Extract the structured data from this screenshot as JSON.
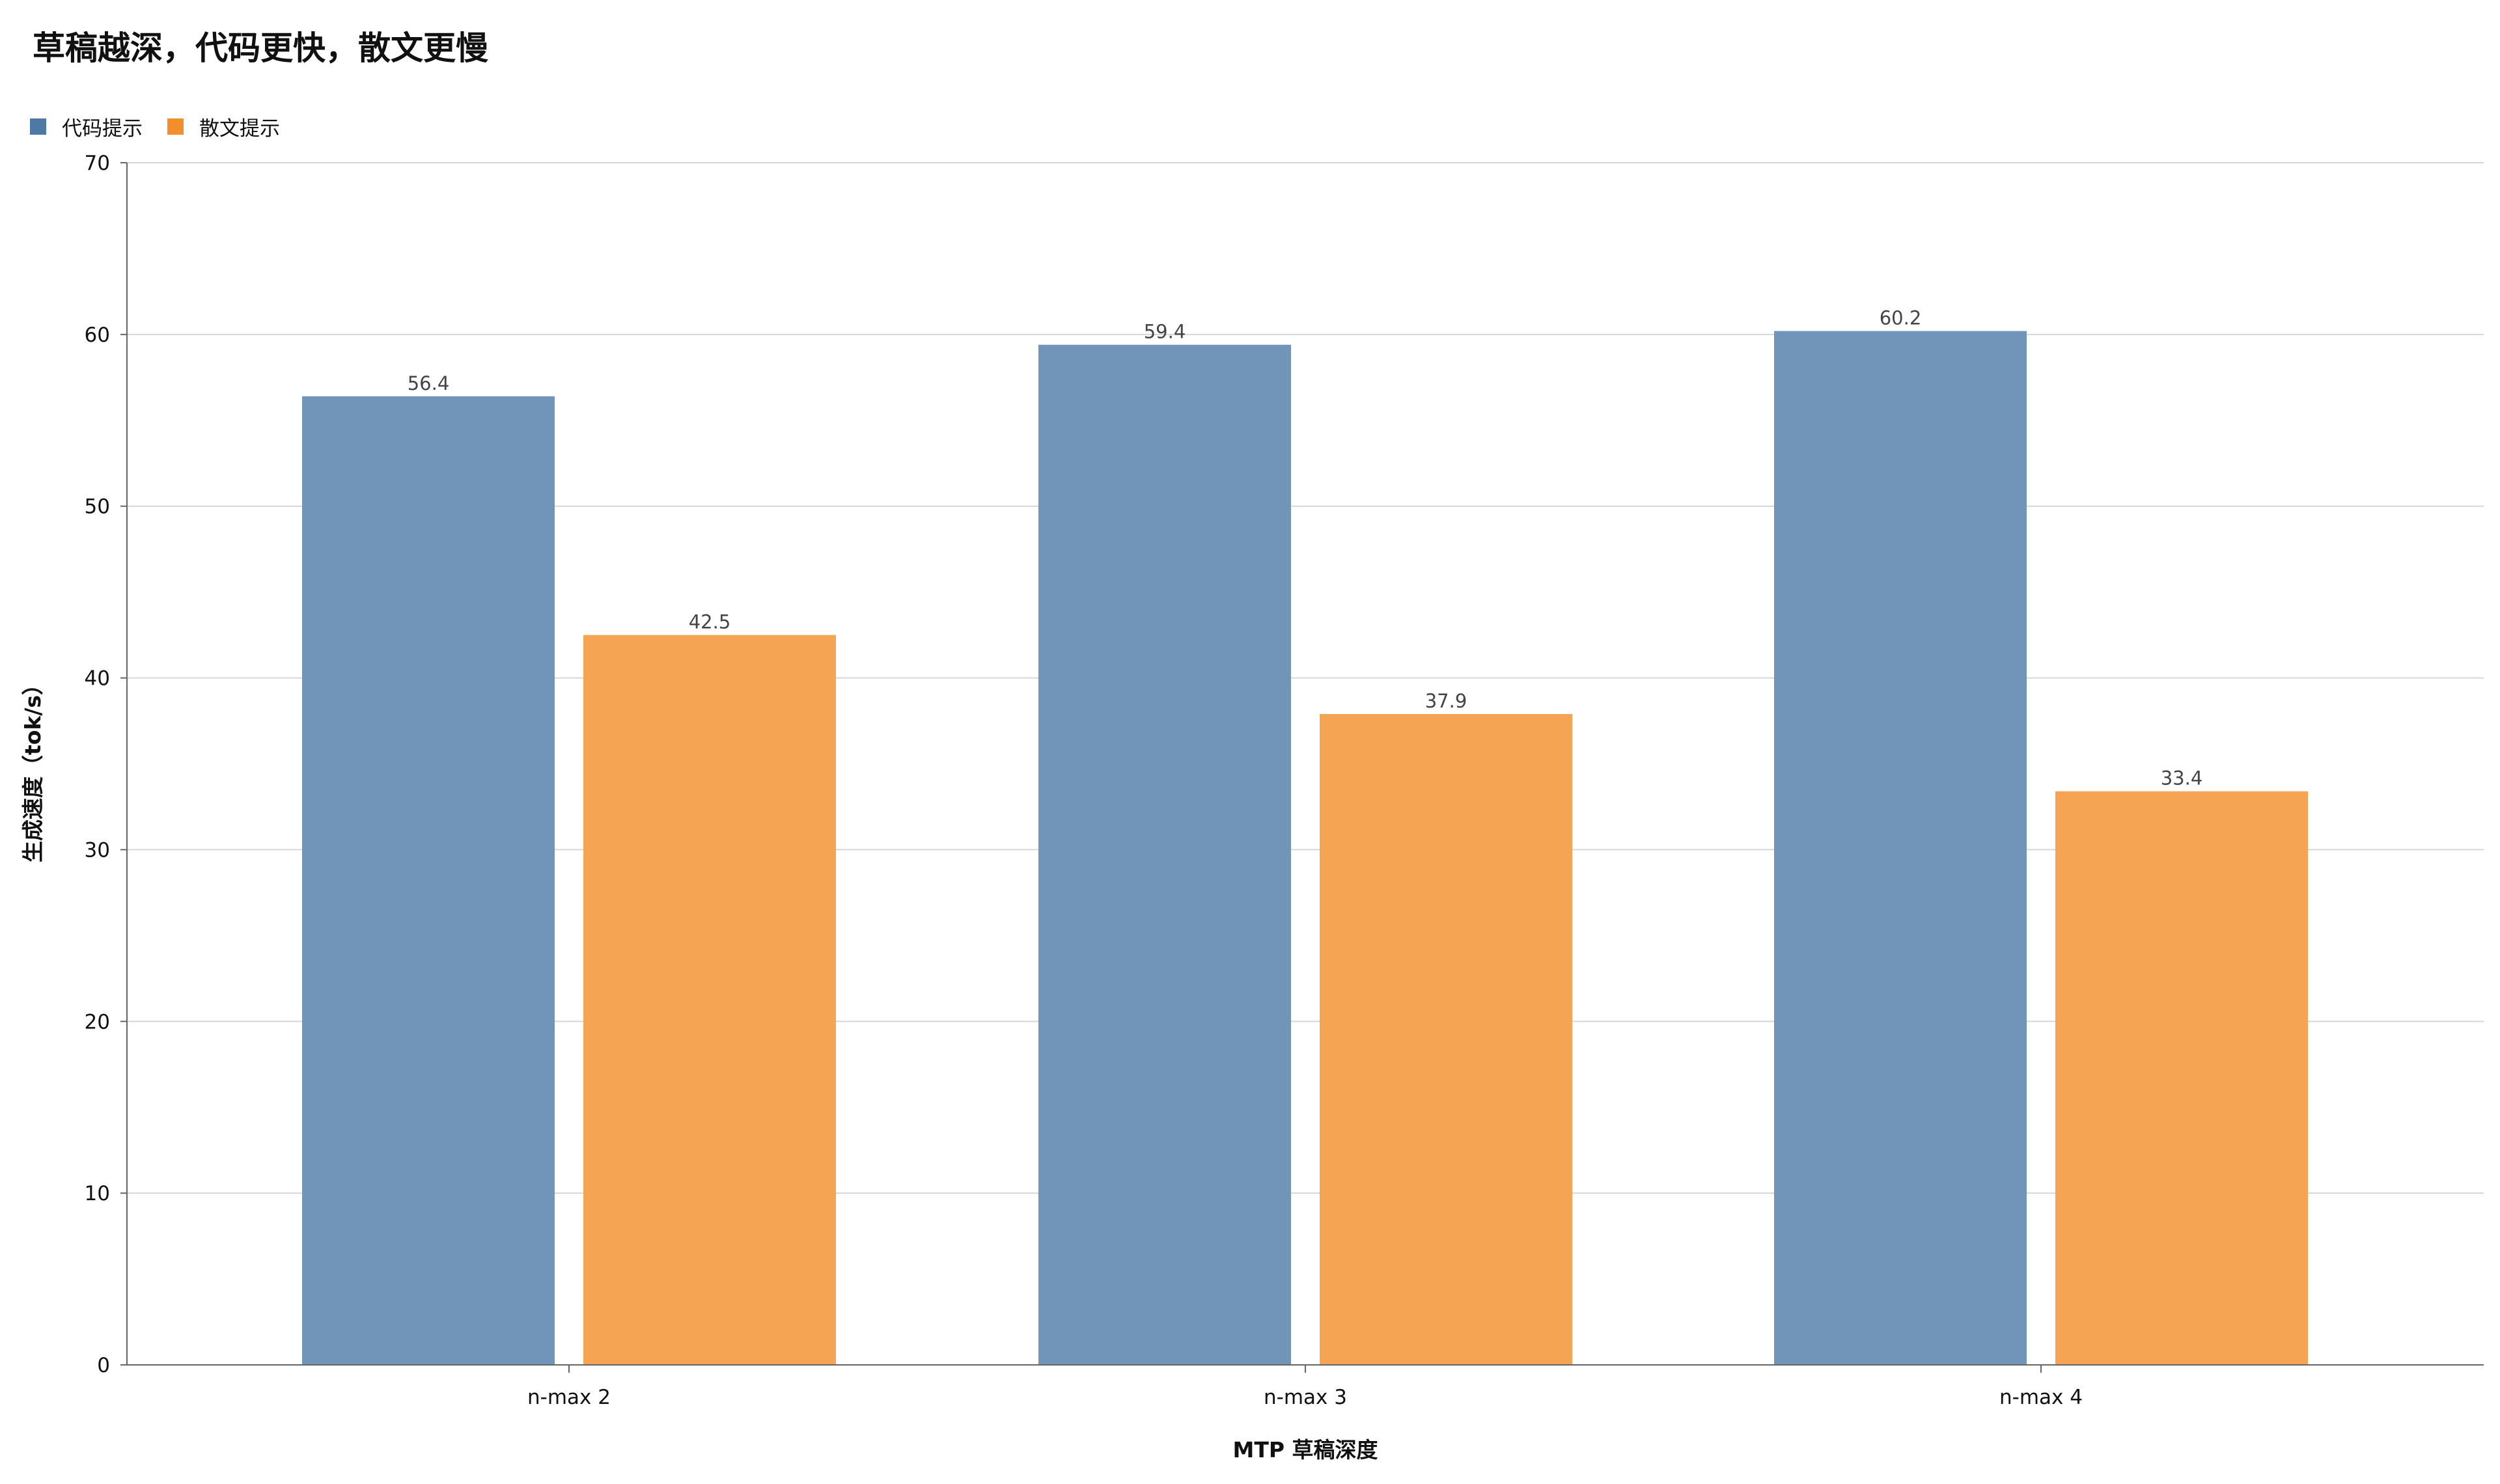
{
  "chart_data": {
    "type": "bar",
    "title": "草稿越深，代码更快，散文更慢",
    "xlabel": "MTP 草稿深度",
    "ylabel": "生成速度（tok/s）",
    "categories": [
      "n-max 2",
      "n-max 3",
      "n-max 4"
    ],
    "ylim": [
      0,
      70
    ],
    "yticks": [
      0,
      10,
      20,
      30,
      40,
      50,
      60,
      70
    ],
    "grid": true,
    "legend_position": "top-left",
    "series": [
      {
        "name": "代码提示",
        "color": "#7195b9",
        "values": [
          56.4,
          59.4,
          60.2
        ],
        "labels": [
          "56.4",
          "59.4",
          "60.2"
        ]
      },
      {
        "name": "散文提示",
        "color": "#f5a454",
        "values": [
          42.5,
          37.9,
          33.4
        ],
        "labels": [
          "42.5",
          "37.9",
          "33.4"
        ]
      }
    ]
  },
  "legend_colors": {
    "代码提示": "#4e79a7",
    "散文提示": "#f28e2b"
  }
}
